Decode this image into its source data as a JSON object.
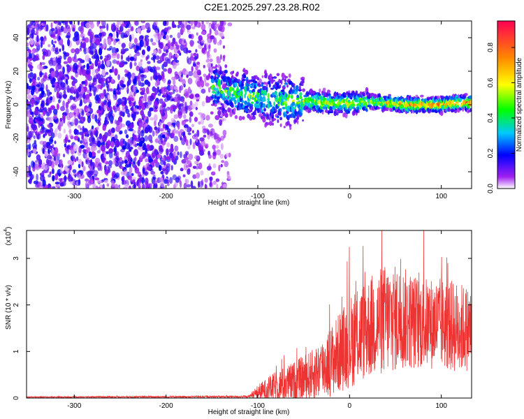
{
  "title": "C2E1.2025.297.23.28.R02",
  "chart_data": [
    {
      "type": "heatmap",
      "name": "spectrogram",
      "xlabel": "Height of straight line (km)",
      "ylabel": "Frequency (Hz)",
      "xlim": [
        -352,
        133
      ],
      "ylim": [
        -50,
        50
      ],
      "xticks": [
        -300,
        -200,
        -100,
        0,
        100
      ],
      "yticks": [
        -40,
        -20,
        0,
        20,
        40
      ],
      "colorbar": {
        "label": "Normalized spectral amplitude",
        "range": [
          0.0,
          0.95
        ],
        "ticks": [
          0.0,
          0.2,
          0.4,
          0.6,
          0.8
        ]
      },
      "regions": [
        {
          "x_range": [
            -352,
            -145
          ],
          "description_level": 0.15,
          "freq_spread": [
            -50,
            50
          ]
        },
        {
          "x_range": [
            -145,
            -50
          ],
          "level": 0.3,
          "freq_spread": [
            -10,
            22
          ]
        },
        {
          "x_range": [
            -50,
            133
          ],
          "level": 0.6,
          "freq_spread": [
            -5,
            8
          ]
        }
      ],
      "ridge": [
        {
          "x": -145,
          "f": 10
        },
        {
          "x": -120,
          "f": 6
        },
        {
          "x": -100,
          "f": 4
        },
        {
          "x": -80,
          "f": 3
        },
        {
          "x": -60,
          "f": 2
        },
        {
          "x": -40,
          "f": 2
        },
        {
          "x": -20,
          "f": 1
        },
        {
          "x": 0,
          "f": 1
        },
        {
          "x": 20,
          "f": 2
        },
        {
          "x": 40,
          "f": 1
        },
        {
          "x": 60,
          "f": 0
        },
        {
          "x": 80,
          "f": 0
        },
        {
          "x": 100,
          "f": 0
        },
        {
          "x": 120,
          "f": 1
        },
        {
          "x": 133,
          "f": 1
        }
      ]
    },
    {
      "type": "line",
      "name": "snr",
      "xlabel": "Height of straight line (km)",
      "ylabel": "SNR (10 * v/v)",
      "y_scale_label": "(x10",
      "y_scale_exp": "4",
      "xlim": [
        -352,
        133
      ],
      "ylim": [
        0,
        3.6
      ],
      "xticks": [
        -300,
        -200,
        -100,
        0,
        100
      ],
      "yticks": [
        0,
        1,
        2,
        3
      ],
      "color": "#ee3333",
      "envelope": [
        {
          "x": -352,
          "mean": 0.02,
          "amp": 0.01
        },
        {
          "x": -110,
          "mean": 0.03,
          "amp": 0.02
        },
        {
          "x": -100,
          "mean": 0.12,
          "amp": 0.15
        },
        {
          "x": -80,
          "mean": 0.25,
          "amp": 0.3
        },
        {
          "x": -60,
          "mean": 0.35,
          "amp": 0.4
        },
        {
          "x": -40,
          "mean": 0.5,
          "amp": 0.5
        },
        {
          "x": -20,
          "mean": 0.8,
          "amp": 0.7
        },
        {
          "x": 0,
          "mean": 1.2,
          "amp": 0.9
        },
        {
          "x": 20,
          "mean": 1.5,
          "amp": 1.0
        },
        {
          "x": 40,
          "mean": 1.7,
          "amp": 1.1
        },
        {
          "x": 60,
          "mean": 1.7,
          "amp": 1.0
        },
        {
          "x": 80,
          "mean": 1.6,
          "amp": 0.9
        },
        {
          "x": 100,
          "mean": 1.6,
          "amp": 0.9
        },
        {
          "x": 120,
          "mean": 1.5,
          "amp": 0.9
        },
        {
          "x": 133,
          "mean": 1.5,
          "amp": 0.8
        }
      ]
    }
  ]
}
